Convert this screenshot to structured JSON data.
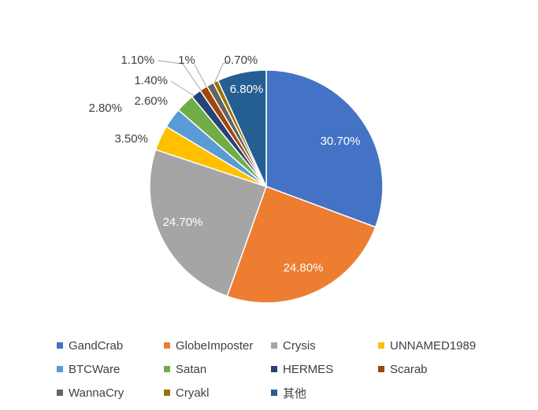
{
  "chart_data": {
    "type": "pie",
    "slices": [
      {
        "name": "GandCrab",
        "value": 30.7,
        "label": "30.70%",
        "color": "#4472C4"
      },
      {
        "name": "GlobeImposter",
        "value": 24.8,
        "label": "24.80%",
        "color": "#ED7D31"
      },
      {
        "name": "Crysis",
        "value": 24.7,
        "label": "24.70%",
        "color": "#A5A5A5"
      },
      {
        "name": "UNNAMED1989",
        "value": 3.5,
        "label": "3.50%",
        "color": "#FFC000"
      },
      {
        "name": "BTCWare",
        "value": 2.8,
        "label": "2.80%",
        "color": "#5B9BD5"
      },
      {
        "name": "Satan",
        "value": 2.6,
        "label": "2.60%",
        "color": "#70AD47"
      },
      {
        "name": "HERMES",
        "value": 1.4,
        "label": "1.40%",
        "color": "#264478"
      },
      {
        "name": "Scarab",
        "value": 1.1,
        "label": "1.10%",
        "color": "#9E480E"
      },
      {
        "name": "WannaCry",
        "value": 1.0,
        "label": "1%",
        "color": "#636363"
      },
      {
        "name": "Cryakl",
        "value": 0.7,
        "label": "0.70%",
        "color": "#997300"
      },
      {
        "name": "其他",
        "value": 6.8,
        "label": "6.80%",
        "color": "#255E91"
      }
    ],
    "legend_position": "bottom",
    "start_angle": "12 o'clock",
    "direction": "clockwise"
  }
}
